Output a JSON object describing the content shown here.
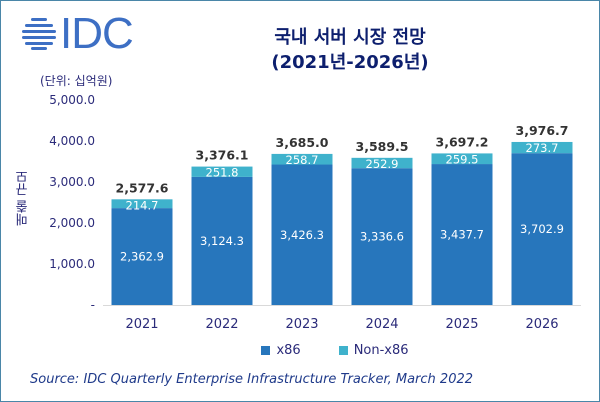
{
  "logo": {
    "text": "IDC"
  },
  "title_line1": "국내 서버 시장 전망",
  "title_line2": "(2021년-2026년)",
  "unit_label": "(단위: 십억원)",
  "source": "Source: IDC Quarterly Enterprise Infrastructure Tracker, March 2022",
  "chart_data": {
    "type": "bar",
    "stacked": true,
    "title": "국내 서버 시장 전망 (2021년-2026년)",
    "ylabel": "매출 규모",
    "xlabel": "",
    "ylim": [
      0,
      5000
    ],
    "yticks": [
      0,
      1000,
      2000,
      3000,
      4000,
      5000
    ],
    "ytick_labels": [
      "-",
      "1,000.0",
      "2,000.0",
      "3,000.0",
      "4,000.0",
      "5,000.0"
    ],
    "grid": false,
    "legend": "bottom",
    "categories": [
      "2021",
      "2022",
      "2023",
      "2024",
      "2025",
      "2026"
    ],
    "series": [
      {
        "name": "x86",
        "color": "#2776bc",
        "values": [
          2362.9,
          3124.3,
          3426.3,
          3336.6,
          3437.7,
          3702.9
        ],
        "labels": [
          "2,362.9",
          "3,124.3",
          "3,426.3",
          "3,336.6",
          "3,437.7",
          "3,702.9"
        ]
      },
      {
        "name": "Non-x86",
        "color": "#3fb2cc",
        "values": [
          214.7,
          251.8,
          258.7,
          252.9,
          259.5,
          273.7
        ],
        "labels": [
          "214.7",
          "251.8",
          "258.7",
          "252.9",
          "259.5",
          "273.7"
        ]
      }
    ],
    "totals": [
      "2,577.6",
      "3,376.1",
      "3,685.0",
      "3,589.5",
      "3,697.2",
      "3,976.7"
    ]
  }
}
